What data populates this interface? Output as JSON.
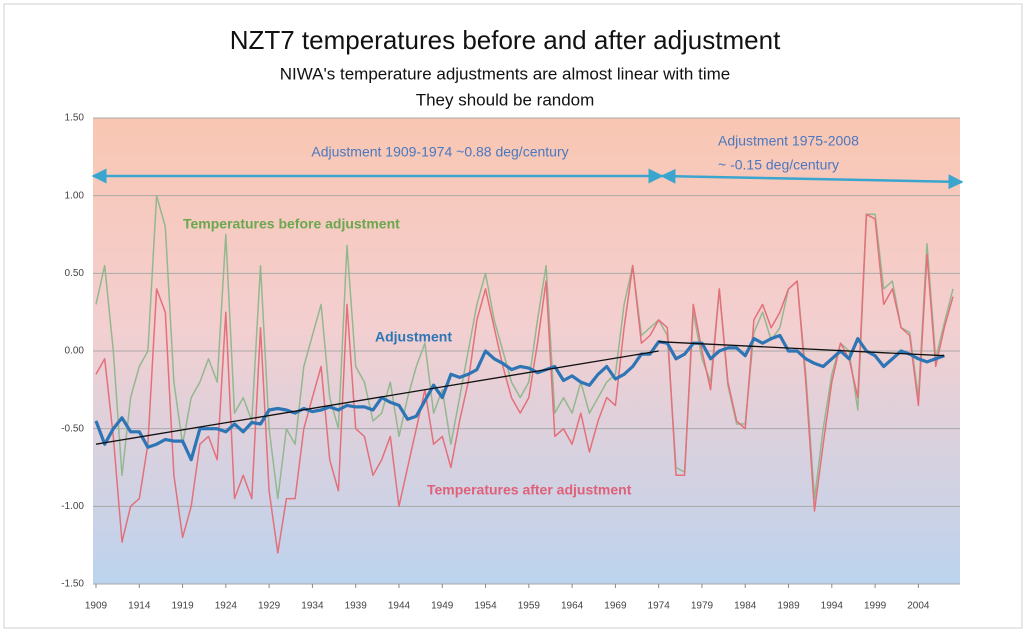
{
  "chart_data": {
    "type": "line",
    "title": "NZT7 temperatures before and after adjustment",
    "subtitle": [
      "NIWA's temperature adjustments are almost linear with time",
      "They should be random"
    ],
    "annotations": [
      "Adjustment 1909-1974 ~0.88 deg/century",
      "Adjustment  1975-2008",
      "~ -0.15 deg/century"
    ],
    "x": [
      1909,
      1910,
      1911,
      1912,
      1913,
      1914,
      1915,
      1916,
      1917,
      1918,
      1919,
      1920,
      1921,
      1922,
      1923,
      1924,
      1925,
      1926,
      1927,
      1928,
      1929,
      1930,
      1931,
      1932,
      1933,
      1934,
      1935,
      1936,
      1937,
      1938,
      1939,
      1940,
      1941,
      1942,
      1943,
      1944,
      1945,
      1946,
      1947,
      1948,
      1949,
      1950,
      1951,
      1952,
      1953,
      1954,
      1955,
      1956,
      1957,
      1958,
      1959,
      1960,
      1961,
      1962,
      1963,
      1964,
      1965,
      1966,
      1967,
      1968,
      1969,
      1970,
      1971,
      1972,
      1973,
      1974,
      1975,
      1976,
      1977,
      1978,
      1979,
      1980,
      1981,
      1982,
      1983,
      1984,
      1985,
      1986,
      1987,
      1988,
      1989,
      1990,
      1991,
      1992,
      1993,
      1994,
      1995,
      1996,
      1997,
      1998,
      1999,
      2000,
      2001,
      2002,
      2003,
      2004,
      2005,
      2006,
      2007,
      2008
    ],
    "xlim": [
      1909,
      2008
    ],
    "xticks": [
      1909,
      1914,
      1919,
      1924,
      1929,
      1934,
      1939,
      1944,
      1949,
      1954,
      1959,
      1964,
      1969,
      1974,
      1979,
      1984,
      1989,
      1994,
      1999,
      2004
    ],
    "ylim": [
      -1.5,
      1.5
    ],
    "yticks": [
      {
        "value": 1.5,
        "label": "1.50"
      },
      {
        "value": 1.0,
        "label": "1.00"
      },
      {
        "value": 0.5,
        "label": "0.50"
      },
      {
        "value": 0,
        "label": "0.00"
      },
      {
        "value": -0.5,
        "label": "-0.50"
      },
      {
        "value": -1.0,
        "label": "-1.00"
      },
      {
        "value": -1.5,
        "label": "-1.50"
      }
    ],
    "grid": true,
    "series": [
      {
        "name": "Temperatures before adjustment",
        "color": "#93b88f",
        "values": [
          0.3,
          0.55,
          0.0,
          -0.8,
          -0.3,
          -0.1,
          0.0,
          1.0,
          0.8,
          -0.2,
          -0.6,
          -0.3,
          -0.2,
          -0.05,
          -0.2,
          0.75,
          -0.4,
          -0.3,
          -0.45,
          0.55,
          -0.5,
          -0.95,
          -0.5,
          -0.6,
          -0.1,
          0.1,
          0.3,
          -0.3,
          -0.5,
          0.68,
          -0.1,
          -0.2,
          -0.45,
          -0.4,
          -0.2,
          -0.55,
          -0.3,
          -0.1,
          0.05,
          -0.4,
          -0.25,
          -0.6,
          -0.3,
          0.0,
          0.3,
          0.5,
          0.2,
          0.0,
          -0.2,
          -0.3,
          -0.2,
          0.2,
          0.55,
          -0.4,
          -0.3,
          -0.4,
          -0.2,
          -0.4,
          -0.3,
          -0.2,
          -0.15,
          0.3,
          0.55,
          0.1,
          0.15,
          0.2,
          0.1,
          -0.75,
          -0.78,
          0.25,
          -0.05,
          -0.2,
          0.4,
          -0.22,
          -0.47,
          -0.47,
          0.12,
          0.25,
          0.07,
          0.15,
          0.4,
          0.45,
          -0.15,
          -0.95,
          -0.5,
          -0.15,
          0.05,
          0.0,
          -0.38,
          0.88,
          0.88,
          0.4,
          0.45,
          0.15,
          0.12,
          -0.3,
          0.69,
          -0.05,
          0.18,
          0.4
        ]
      },
      {
        "name": "Temperatures after adjustment",
        "color": "#e3707a",
        "values": [
          -0.15,
          -0.05,
          -0.55,
          -1.23,
          -1.0,
          -0.95,
          -0.6,
          0.4,
          0.25,
          -0.8,
          -1.2,
          -1.0,
          -0.6,
          -0.55,
          -0.7,
          0.25,
          -0.95,
          -0.8,
          -0.95,
          0.15,
          -0.9,
          -1.3,
          -0.95,
          -0.95,
          -0.5,
          -0.3,
          -0.1,
          -0.7,
          -0.9,
          0.3,
          -0.5,
          -0.55,
          -0.8,
          -0.7,
          -0.55,
          -1.0,
          -0.75,
          -0.5,
          -0.25,
          -0.6,
          -0.55,
          -0.75,
          -0.45,
          -0.2,
          0.2,
          0.4,
          0.15,
          -0.1,
          -0.3,
          -0.4,
          -0.3,
          0.05,
          0.45,
          -0.55,
          -0.5,
          -0.6,
          -0.4,
          -0.65,
          -0.45,
          -0.3,
          -0.35,
          0.15,
          0.55,
          0.05,
          0.1,
          0.2,
          0.15,
          -0.8,
          -0.8,
          0.3,
          0.0,
          -0.25,
          0.4,
          -0.2,
          -0.45,
          -0.5,
          0.2,
          0.3,
          0.15,
          0.25,
          0.4,
          0.45,
          -0.2,
          -1.03,
          -0.6,
          -0.2,
          0.05,
          -0.05,
          -0.3,
          0.88,
          0.85,
          0.3,
          0.4,
          0.15,
          0.1,
          -0.35,
          0.62,
          -0.1,
          0.15,
          0.35
        ]
      },
      {
        "name": "Adjustment",
        "color": "#2e75b6",
        "values": [
          -0.45,
          -0.6,
          -0.5,
          -0.43,
          -0.52,
          -0.52,
          -0.62,
          -0.6,
          -0.57,
          -0.58,
          -0.58,
          -0.7,
          -0.5,
          -0.5,
          -0.5,
          -0.52,
          -0.47,
          -0.52,
          -0.46,
          -0.47,
          -0.38,
          -0.37,
          -0.38,
          -0.4,
          -0.37,
          -0.39,
          -0.38,
          -0.36,
          -0.38,
          -0.35,
          -0.36,
          -0.36,
          -0.38,
          -0.3,
          -0.33,
          -0.35,
          -0.44,
          -0.42,
          -0.32,
          -0.22,
          -0.3,
          -0.15,
          -0.17,
          -0.15,
          -0.12,
          0.0,
          -0.05,
          -0.08,
          -0.12,
          -0.1,
          -0.11,
          -0.14,
          -0.12,
          -0.1,
          -0.19,
          -0.16,
          -0.2,
          -0.22,
          -0.15,
          -0.1,
          -0.18,
          -0.15,
          -0.1,
          -0.02,
          -0.02,
          0.06,
          0.05,
          -0.05,
          -0.02,
          0.05,
          0.05,
          -0.05,
          0.0,
          0.02,
          0.02,
          -0.03,
          0.08,
          0.05,
          0.08,
          0.1,
          0.0,
          0.0,
          -0.05,
          -0.08,
          -0.1,
          -0.05,
          0.0,
          -0.05,
          0.08,
          0.0,
          -0.03,
          -0.1,
          -0.05,
          0.0,
          -0.02,
          -0.05,
          -0.07,
          -0.05,
          -0.03,
          null
        ]
      }
    ],
    "trend_lines": [
      {
        "x": [
          1909,
          1974
        ],
        "values": [
          -0.6,
          0.0
        ]
      },
      {
        "x": [
          1974,
          2007
        ],
        "values": [
          0.06,
          -0.03
        ]
      }
    ]
  }
}
